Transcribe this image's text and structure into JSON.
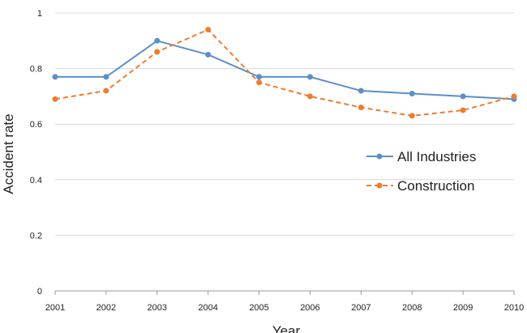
{
  "chart_data": {
    "type": "line",
    "title": "",
    "xlabel": "Year",
    "ylabel": "Accident rate",
    "categories": [
      "2001",
      "2002",
      "2003",
      "2004",
      "2005",
      "2006",
      "2007",
      "2008",
      "2009",
      "2010"
    ],
    "yticks": [
      "0",
      "0.2",
      "0.4",
      "0.6",
      "0.8",
      "1"
    ],
    "ylim": [
      0,
      1
    ],
    "grid": true,
    "legend_position": "right",
    "series": [
      {
        "name": "All Industries",
        "color": "#5b8fc7",
        "line_style": "solid",
        "values": [
          0.77,
          0.77,
          0.9,
          0.85,
          0.77,
          0.77,
          0.72,
          0.71,
          0.7,
          0.69
        ]
      },
      {
        "name": "Construction",
        "color": "#ed7d31",
        "line_style": "dashed",
        "values": [
          0.69,
          0.72,
          0.86,
          0.94,
          0.75,
          0.7,
          0.66,
          0.63,
          0.65,
          0.7
        ]
      }
    ]
  }
}
